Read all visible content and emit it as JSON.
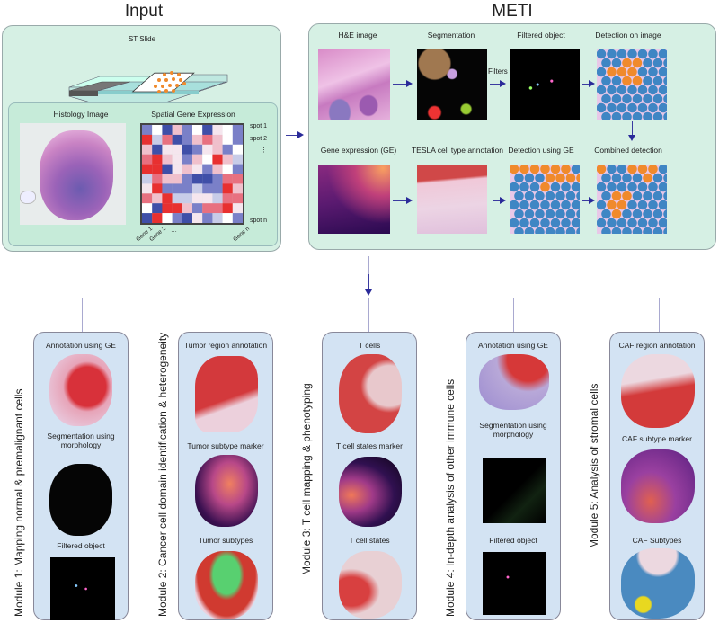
{
  "input": {
    "title": "Input",
    "st_slide": "ST Slide",
    "histology": "Histology Image",
    "sge": "Spatial Gene Expression",
    "spots": [
      "spot 1",
      "spot 2",
      "⋮",
      "spot n"
    ],
    "genes": [
      "Gene 1",
      "Gene 2",
      "…",
      "Gene n"
    ]
  },
  "meti": {
    "title": "METI",
    "panels": [
      "H&E image",
      "Segmentation",
      "Filtered object",
      "Detection on image",
      "Gene expression (GE)",
      "TESLA cell type annotation",
      "Detection using GE",
      "Combined detection"
    ],
    "filters": "Filters"
  },
  "modules": [
    {
      "title": "Module 1: Mapping normal & premalignant cells",
      "items": [
        "Annotation using GE",
        "Segmentation using morphology",
        "Filtered object"
      ]
    },
    {
      "title": "Module 2: Cancer cell domain identification & heterogeneity",
      "items": [
        "Tumor region annotation",
        "Tumor subtype marker",
        "Tumor subtypes"
      ]
    },
    {
      "title": "Module 3: T cell mapping & phenotyping",
      "items": [
        "T cells",
        "T cell states marker",
        "T cell states"
      ]
    },
    {
      "title": "Module 4: In-depth analysis of other immune cells",
      "items": [
        "Annotation using GE",
        "Segmentation using morphology",
        "Filtered object"
      ]
    },
    {
      "title": "Module 5: Analysis of stromal cells",
      "items": [
        "CAF region annotation",
        "CAF subtype marker",
        "CAF Subtypes"
      ]
    }
  ],
  "colors": {
    "blue_cell": "#3f86c4",
    "orange_cell": "#f08a2c",
    "arrow": "#2a2a99"
  }
}
